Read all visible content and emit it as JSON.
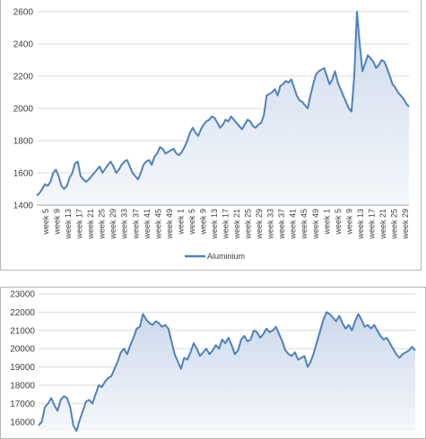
{
  "colors": {
    "line": "#4f81bd",
    "fill_top": "#c6d4ea",
    "fill_bottom": "#f4f7fb",
    "grid": "#d9d9d9"
  },
  "chart_data": [
    {
      "type": "area",
      "series": [
        {
          "name": "Aluminium",
          "values": [
            1460,
            1475,
            1500,
            1530,
            1520,
            1545,
            1600,
            1620,
            1580,
            1520,
            1500,
            1520,
            1570,
            1600,
            1660,
            1670,
            1580,
            1560,
            1545,
            1560,
            1580,
            1600,
            1620,
            1640,
            1600,
            1625,
            1650,
            1670,
            1640,
            1600,
            1620,
            1650,
            1670,
            1680,
            1640,
            1600,
            1580,
            1560,
            1600,
            1650,
            1670,
            1680,
            1650,
            1700,
            1720,
            1760,
            1750,
            1720,
            1730,
            1740,
            1750,
            1720,
            1710,
            1730,
            1760,
            1800,
            1850,
            1880,
            1850,
            1830,
            1870,
            1900,
            1920,
            1930,
            1950,
            1940,
            1910,
            1880,
            1900,
            1930,
            1920,
            1950,
            1930,
            1910,
            1890,
            1870,
            1900,
            1930,
            1920,
            1890,
            1880,
            1900,
            1910,
            1960,
            2080,
            2090,
            2100,
            2120,
            2080,
            2140,
            2150,
            2170,
            2160,
            2180,
            2130,
            2080,
            2050,
            2040,
            2020,
            2000,
            2080,
            2150,
            2210,
            2230,
            2240,
            2250,
            2200,
            2150,
            2180,
            2230,
            2160,
            2120,
            2080,
            2040,
            2000,
            1980,
            2200,
            2600,
            2400,
            2230,
            2280,
            2330,
            2310,
            2290,
            2250,
            2270,
            2300,
            2290,
            2250,
            2200,
            2150,
            2130,
            2100,
            2080,
            2060,
            2030,
            2010
          ]
        }
      ],
      "xtick_labels": [
        "week 5",
        "week 9",
        "week 13",
        "week 17",
        "week 21",
        "week 25",
        "week 29",
        "week 33",
        "week 37",
        "week 41",
        "week 45",
        "week 49",
        "week 1",
        "week 5",
        "week 9",
        "week 13",
        "week 17",
        "week 21",
        "week 25",
        "week 29",
        "week 33",
        "week 37",
        "week 41",
        "week 45",
        "week 49",
        "week 1",
        "week 5",
        "week 9",
        "week 13",
        "week 17",
        "week 21",
        "week 25",
        "week 29"
      ],
      "yticks": [
        1400,
        1600,
        1800,
        2000,
        2200,
        2400,
        2600
      ],
      "ylim": [
        1400,
        2600
      ],
      "legend": "bottom",
      "grid": true
    },
    {
      "type": "area",
      "series": [
        {
          "values": [
            15800,
            16000,
            16800,
            17000,
            17300,
            16900,
            16600,
            17200,
            17400,
            17300,
            16800,
            15800,
            15500,
            16100,
            16600,
            17100,
            17200,
            17000,
            17500,
            18000,
            17900,
            18200,
            18400,
            18500,
            18900,
            19300,
            19800,
            20000,
            19700,
            20200,
            20600,
            21100,
            21200,
            21900,
            21600,
            21400,
            21300,
            21500,
            21400,
            21200,
            21300,
            21100,
            20400,
            19700,
            19300,
            18900,
            19500,
            19400,
            19800,
            20300,
            20000,
            19600,
            19800,
            20000,
            19700,
            19900,
            20200,
            20000,
            20500,
            20300,
            20600,
            20200,
            19700,
            19900,
            20500,
            20700,
            20400,
            20500,
            21000,
            20900,
            20600,
            20800,
            21100,
            20900,
            21000,
            21200,
            20800,
            20400,
            19900,
            19700,
            19600,
            19800,
            19400,
            19500,
            19600,
            19000,
            19300,
            19800,
            20400,
            21000,
            21600,
            22000,
            21900,
            21700,
            21500,
            21800,
            21400,
            21100,
            21300,
            21000,
            21500,
            21900,
            21600,
            21200,
            21300,
            21100,
            21300,
            21000,
            20700,
            20500,
            20600,
            20300,
            20000,
            19700,
            19500,
            19700,
            19800,
            19900,
            20100,
            19900
          ]
        }
      ],
      "yticks": [
        16000,
        17000,
        18000,
        19000,
        20000,
        21000,
        22000,
        23000
      ],
      "ylim": [
        15500,
        23000
      ],
      "grid": true
    }
  ]
}
